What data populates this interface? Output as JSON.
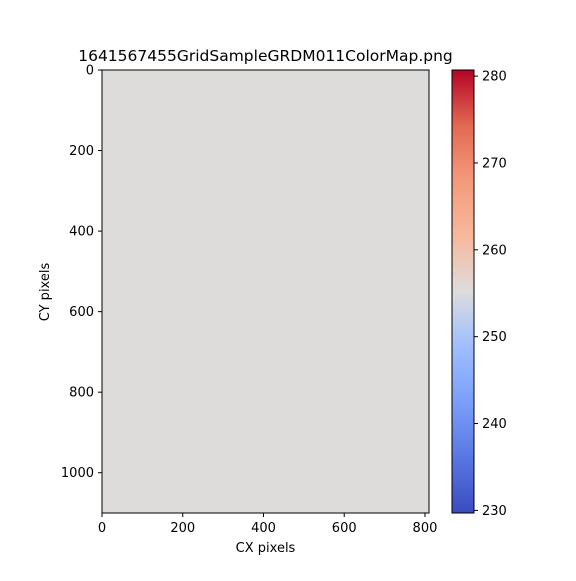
{
  "chart_data": {
    "type": "heatmap",
    "title": "1641567455GridSampleGRDM011ColorMap.png",
    "xlabel": "CX pixels",
    "ylabel": "CY pixels",
    "xlim": [
      0,
      810
    ],
    "ylim": [
      1100,
      0
    ],
    "x_ticks": [
      0,
      200,
      400,
      600,
      800
    ],
    "y_ticks": [
      0,
      200,
      400,
      600,
      800,
      1000
    ],
    "grid": false,
    "uniform_value": 255.3,
    "cell_color": "#dddcdb",
    "colorbar": {
      "colormap": "coolwarm",
      "vmin": 229.7,
      "vmax": 280.7,
      "ticks": [
        230,
        240,
        250,
        260,
        270,
        280
      ],
      "stops": [
        {
          "offset": 0.0,
          "color": "#3b4cc0"
        },
        {
          "offset": 0.125,
          "color": "#5977e3"
        },
        {
          "offset": 0.25,
          "color": "#7b9ff9"
        },
        {
          "offset": 0.375,
          "color": "#9ebeff"
        },
        {
          "offset": 0.5,
          "color": "#dddcdc"
        },
        {
          "offset": 0.625,
          "color": "#f7b89c"
        },
        {
          "offset": 0.75,
          "color": "#f49a7b"
        },
        {
          "offset": 0.875,
          "color": "#e26952"
        },
        {
          "offset": 1.0,
          "color": "#b40426"
        }
      ]
    }
  }
}
